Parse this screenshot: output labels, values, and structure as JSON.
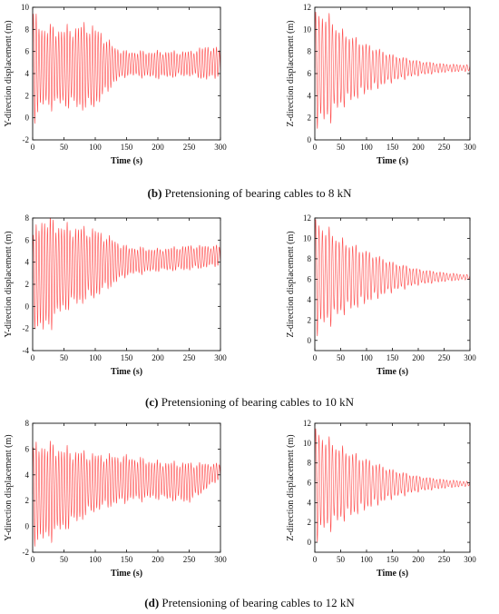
{
  "captions": [
    {
      "letter": "(b)",
      "text": "Pretensioning of bearing cables to 8 kN"
    },
    {
      "letter": "(c)",
      "text": "Pretensioning of bearing cables to 10 kN"
    },
    {
      "letter": "(d)",
      "text": "Pretensioning of bearing cables to 12 kN"
    }
  ],
  "colors": {
    "series": "#ff4d4d",
    "axis": "#111111"
  },
  "chart_data": [
    {
      "type": "line",
      "panel": "b-left",
      "xlabel": "Time (s)",
      "ylabel": "Y-direction displacement (m)",
      "xlim": [
        0,
        300
      ],
      "ylim": [
        -2,
        10
      ],
      "xticks": [
        0,
        50,
        100,
        150,
        200,
        250,
        300
      ],
      "yticks": [
        -2,
        0,
        2,
        4,
        6,
        8,
        10
      ],
      "series": [
        {
          "period_s": 4.5,
          "mean": [
            [
              0,
              4.6
            ],
            [
              50,
              4.6
            ],
            [
              100,
              4.6
            ],
            [
              150,
              4.9
            ],
            [
              200,
              4.8
            ],
            [
              250,
              4.9
            ],
            [
              300,
              5.0
            ]
          ],
          "amplitude": [
            [
              0,
              4.5
            ],
            [
              15,
              3.4
            ],
            [
              50,
              3.2
            ],
            [
              90,
              3.6
            ],
            [
              110,
              2.8
            ],
            [
              130,
              1.5
            ],
            [
              150,
              1.0
            ],
            [
              200,
              1.1
            ],
            [
              250,
              1.0
            ],
            [
              280,
              1.4
            ],
            [
              300,
              1.1
            ]
          ]
        }
      ]
    },
    {
      "type": "line",
      "panel": "b-right",
      "xlabel": "Time (s)",
      "ylabel": "Z-direction displacement (m)",
      "xlim": [
        0,
        300
      ],
      "ylim": [
        0,
        12
      ],
      "xticks": [
        0,
        50,
        100,
        150,
        200,
        250,
        300
      ],
      "yticks": [
        0,
        2,
        4,
        6,
        8,
        10,
        12
      ],
      "series": [
        {
          "period_s": 6.5,
          "mean": [
            [
              0,
              6.5
            ],
            [
              300,
              6.5
            ]
          ],
          "amplitude": [
            [
              0,
              4.5
            ],
            [
              20,
              4.7
            ],
            [
              50,
              3.2
            ],
            [
              100,
              2.0
            ],
            [
              150,
              1.1
            ],
            [
              200,
              0.6
            ],
            [
              250,
              0.35
            ],
            [
              300,
              0.25
            ]
          ]
        }
      ]
    },
    {
      "type": "line",
      "panel": "c-left",
      "xlabel": "Time (s)",
      "ylabel": "Y-direction displacement (m)",
      "xlim": [
        0,
        300
      ],
      "ylim": [
        -4,
        8
      ],
      "xticks": [
        0,
        50,
        100,
        150,
        200,
        250,
        300
      ],
      "yticks": [
        -4,
        -2,
        0,
        2,
        4,
        6,
        8
      ],
      "series": [
        {
          "period_s": 4.5,
          "mean": [
            [
              0,
              2.5
            ],
            [
              50,
              3.5
            ],
            [
              100,
              3.9
            ],
            [
              150,
              4.1
            ],
            [
              200,
              4.2
            ],
            [
              250,
              4.4
            ],
            [
              300,
              4.6
            ]
          ],
          "amplitude": [
            [
              0,
              3.5
            ],
            [
              15,
              5.0
            ],
            [
              50,
              3.5
            ],
            [
              100,
              2.8
            ],
            [
              150,
              1.2
            ],
            [
              200,
              0.9
            ],
            [
              250,
              1.0
            ],
            [
              300,
              0.8
            ]
          ]
        }
      ]
    },
    {
      "type": "line",
      "panel": "c-right",
      "xlabel": "Time (s)",
      "ylabel": "Z-direction displacement (m)",
      "xlim": [
        0,
        300
      ],
      "ylim": [
        -1,
        12
      ],
      "xticks": [
        0,
        50,
        100,
        150,
        200,
        250,
        300
      ],
      "yticks": [
        0,
        2,
        4,
        6,
        8,
        10,
        12
      ],
      "series": [
        {
          "period_s": 6.5,
          "mean": [
            [
              0,
              6.3
            ],
            [
              300,
              6.2
            ]
          ],
          "amplitude": [
            [
              0,
              5.0
            ],
            [
              20,
              4.5
            ],
            [
              50,
              3.4
            ],
            [
              100,
              2.3
            ],
            [
              150,
              1.3
            ],
            [
              200,
              0.7
            ],
            [
              250,
              0.4
            ],
            [
              300,
              0.2
            ]
          ]
        }
      ]
    },
    {
      "type": "line",
      "panel": "d-left",
      "xlabel": "Time (s)",
      "ylabel": "Y-direction displacement (m)",
      "xlim": [
        0,
        300
      ],
      "ylim": [
        -2,
        8
      ],
      "xticks": [
        0,
        50,
        100,
        150,
        200,
        250,
        300
      ],
      "yticks": [
        -2,
        0,
        2,
        4,
        6,
        8
      ],
      "series": [
        {
          "period_s": 4.5,
          "mean": [
            [
              0,
              2.5
            ],
            [
              50,
              2.9
            ],
            [
              100,
              3.4
            ],
            [
              150,
              3.7
            ],
            [
              200,
              3.6
            ],
            [
              250,
              3.4
            ],
            [
              300,
              4.3
            ]
          ],
          "amplitude": [
            [
              0,
              3.3
            ],
            [
              15,
              3.6
            ],
            [
              50,
              2.9
            ],
            [
              100,
              2.0
            ],
            [
              150,
              1.6
            ],
            [
              200,
              1.3
            ],
            [
              250,
              1.4
            ],
            [
              300,
              0.5
            ]
          ]
        }
      ]
    },
    {
      "type": "line",
      "panel": "d-right",
      "xlabel": "Time (s)",
      "ylabel": "Z-direction displacement (m)",
      "xlim": [
        0,
        300
      ],
      "ylim": [
        -1,
        12
      ],
      "xticks": [
        0,
        50,
        100,
        150,
        200,
        250,
        300
      ],
      "yticks": [
        0,
        2,
        4,
        6,
        8,
        10,
        12
      ],
      "series": [
        {
          "period_s": 6.5,
          "mean": [
            [
              0,
              5.9
            ],
            [
              300,
              5.9
            ]
          ],
          "amplitude": [
            [
              0,
              5.0
            ],
            [
              20,
              4.4
            ],
            [
              50,
              3.4
            ],
            [
              100,
              2.3
            ],
            [
              150,
              1.3
            ],
            [
              200,
              0.7
            ],
            [
              250,
              0.4
            ],
            [
              300,
              0.2
            ]
          ]
        }
      ]
    }
  ]
}
